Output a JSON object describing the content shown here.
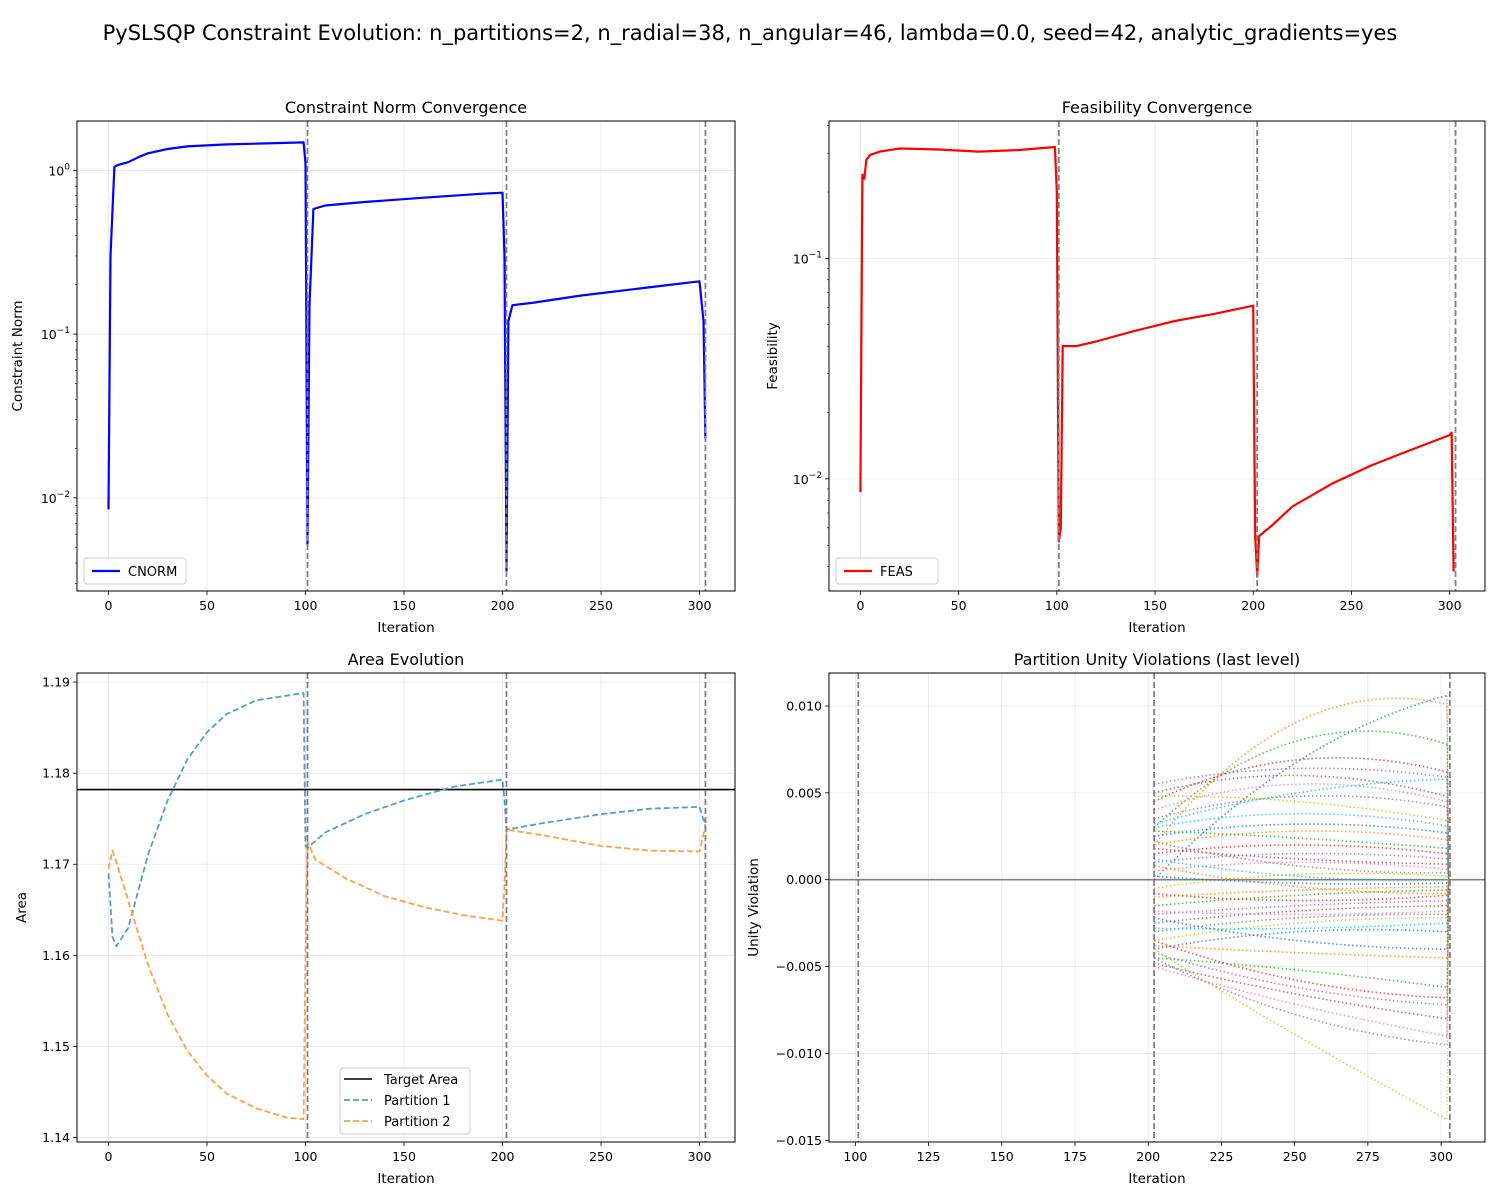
{
  "suptitle": "PySLSQP Constraint Evolution: n_partitions=2, n_radial=38, n_angular=46, lambda=0.0, seed=42, analytic_gradients=yes",
  "chart_data": [
    {
      "type": "line",
      "title": "Constraint Norm Convergence",
      "xlabel": "Iteration",
      "ylabel": "Constraint Norm",
      "yscale": "log",
      "xlim": [
        -16,
        318
      ],
      "ylim": [
        0.0027,
        2.0
      ],
      "xticks": [
        0,
        50,
        100,
        150,
        200,
        250,
        300
      ],
      "yticks": [
        {
          "value": 0.01,
          "base": "10",
          "exp": "−2"
        },
        {
          "value": 0.1,
          "base": "10",
          "exp": "−1"
        },
        {
          "value": 1,
          "base": "10",
          "exp": "0"
        }
      ],
      "grid": true,
      "legend_position": "lower left",
      "vlines": [
        101,
        202,
        303
      ],
      "vline_color": "#808080",
      "series": [
        {
          "name": "CNORM",
          "color": "#0000ff",
          "points": [
            [
              0,
              0.0085
            ],
            [
              1,
              0.3
            ],
            [
              3,
              1.05
            ],
            [
              5,
              1.08
            ],
            [
              10,
              1.12
            ],
            [
              15,
              1.2
            ],
            [
              20,
              1.27
            ],
            [
              30,
              1.35
            ],
            [
              40,
              1.4
            ],
            [
              60,
              1.44
            ],
            [
              80,
              1.46
            ],
            [
              99,
              1.48
            ],
            [
              100,
              1.1
            ],
            [
              101,
              0.0052
            ],
            [
              102,
              0.15
            ],
            [
              104,
              0.58
            ],
            [
              110,
              0.61
            ],
            [
              130,
              0.64
            ],
            [
              160,
              0.68
            ],
            [
              190,
              0.72
            ],
            [
              200,
              0.73
            ],
            [
              201,
              0.3
            ],
            [
              202,
              0.0036
            ],
            [
              203,
              0.12
            ],
            [
              205,
              0.15
            ],
            [
              215,
              0.155
            ],
            [
              240,
              0.172
            ],
            [
              270,
              0.19
            ],
            [
              300,
              0.21
            ],
            [
              302,
              0.12
            ],
            [
              303,
              0.023
            ]
          ]
        }
      ]
    },
    {
      "type": "line",
      "title": "Feasibility Convergence",
      "xlabel": "Iteration",
      "ylabel": "Feasibility",
      "yscale": "log",
      "xlim": [
        -16,
        318
      ],
      "ylim": [
        0.0031,
        0.42
      ],
      "xticks": [
        0,
        50,
        100,
        150,
        200,
        250,
        300
      ],
      "yticks": [
        {
          "value": 0.01,
          "base": "10",
          "exp": "−2"
        },
        {
          "value": 0.1,
          "base": "10",
          "exp": "−1"
        }
      ],
      "grid": true,
      "legend_position": "lower left",
      "vlines": [
        101,
        202,
        303
      ],
      "vline_color": "#808080",
      "series": [
        {
          "name": "FEAS",
          "color": "#ff0000",
          "points": [
            [
              0,
              0.0087
            ],
            [
              1,
              0.24
            ],
            [
              2,
              0.23
            ],
            [
              3,
              0.28
            ],
            [
              5,
              0.295
            ],
            [
              10,
              0.305
            ],
            [
              20,
              0.315
            ],
            [
              40,
              0.312
            ],
            [
              60,
              0.305
            ],
            [
              80,
              0.31
            ],
            [
              99,
              0.32
            ],
            [
              100,
              0.2
            ],
            [
              101,
              0.0052
            ],
            [
              102,
              0.006
            ],
            [
              103,
              0.04
            ],
            [
              110,
              0.04
            ],
            [
              120,
              0.042
            ],
            [
              140,
              0.047
            ],
            [
              160,
              0.052
            ],
            [
              180,
              0.056
            ],
            [
              200,
              0.061
            ],
            [
              201,
              0.0055
            ],
            [
              202,
              0.0036
            ],
            [
              203,
              0.0055
            ],
            [
              210,
              0.0062
            ],
            [
              220,
              0.0075
            ],
            [
              240,
              0.0095
            ],
            [
              260,
              0.0115
            ],
            [
              280,
              0.0135
            ],
            [
              300,
              0.0158
            ],
            [
              301,
              0.0162
            ],
            [
              302,
              0.0038
            ]
          ]
        }
      ]
    },
    {
      "type": "line",
      "title": "Area Evolution",
      "xlabel": "Iteration",
      "ylabel": "Area",
      "xlim": [
        -16,
        318
      ],
      "ylim": [
        1.1395,
        1.191
      ],
      "xticks": [
        0,
        50,
        100,
        150,
        200,
        250,
        300
      ],
      "yticks": [
        1.14,
        1.15,
        1.16,
        1.17,
        1.18,
        1.19
      ],
      "grid": true,
      "legend_position": "lower center",
      "vlines": [
        101,
        202,
        303
      ],
      "vline_color": "#808080",
      "hline": {
        "name": "Target Area",
        "value": 1.1782,
        "color": "#000000"
      },
      "series": [
        {
          "name": "Partition 1",
          "color": "#5a9bc8",
          "dashed": true,
          "points": [
            [
              0,
              1.169
            ],
            [
              2,
              1.162
            ],
            [
              4,
              1.161
            ],
            [
              10,
              1.163
            ],
            [
              20,
              1.171
            ],
            [
              30,
              1.177
            ],
            [
              40,
              1.1815
            ],
            [
              50,
              1.1845
            ],
            [
              60,
              1.1865
            ],
            [
              75,
              1.188
            ],
            [
              90,
              1.1885
            ],
            [
              99,
              1.1888
            ],
            [
              100,
              1.172
            ],
            [
              101,
              1.1718
            ],
            [
              110,
              1.1735
            ],
            [
              130,
              1.1755
            ],
            [
              150,
              1.177
            ],
            [
              175,
              1.1785
            ],
            [
              200,
              1.1793
            ],
            [
              201,
              1.177
            ],
            [
              202,
              1.1738
            ],
            [
              220,
              1.1745
            ],
            [
              250,
              1.1755
            ],
            [
              275,
              1.1761
            ],
            [
              300,
              1.1763
            ],
            [
              303,
              1.1742
            ]
          ]
        },
        {
          "name": "Partition 2",
          "color": "#ffa04d",
          "dashed": true,
          "points": [
            [
              0,
              1.1695
            ],
            [
              2,
              1.1715
            ],
            [
              5,
              1.1695
            ],
            [
              10,
              1.166
            ],
            [
              20,
              1.159
            ],
            [
              30,
              1.1535
            ],
            [
              40,
              1.1495
            ],
            [
              50,
              1.1468
            ],
            [
              60,
              1.1448
            ],
            [
              75,
              1.1432
            ],
            [
              90,
              1.1422
            ],
            [
              99,
              1.142
            ],
            [
              100,
              1.16
            ],
            [
              101,
              1.1725
            ],
            [
              105,
              1.1705
            ],
            [
              120,
              1.1685
            ],
            [
              140,
              1.1665
            ],
            [
              160,
              1.1653
            ],
            [
              180,
              1.1644
            ],
            [
              200,
              1.1638
            ],
            [
              201,
              1.1675
            ],
            [
              202,
              1.1738
            ],
            [
              220,
              1.1732
            ],
            [
              250,
              1.172
            ],
            [
              275,
              1.1715
            ],
            [
              300,
              1.1714
            ],
            [
              303,
              1.1742
            ]
          ]
        }
      ]
    },
    {
      "type": "line",
      "title": "Partition Unity Violations (last level)",
      "xlabel": "Iteration",
      "ylabel": "Unity Violation",
      "xlim": [
        91,
        315
      ],
      "ylim": [
        -0.0151,
        0.0119
      ],
      "xticks": [
        100,
        125,
        150,
        175,
        200,
        225,
        250,
        275,
        300
      ],
      "yticks": [
        {
          "value": -0.015,
          "label": "−0.015"
        },
        {
          "value": -0.01,
          "label": "−0.010"
        },
        {
          "value": -0.005,
          "label": "−0.005"
        },
        {
          "value": 0,
          "label": "0.000"
        },
        {
          "value": 0.005,
          "label": "0.005"
        },
        {
          "value": 0.01,
          "label": "0.010"
        }
      ],
      "grid": true,
      "vlines": [
        101,
        202,
        303
      ],
      "vline_color": "#808080",
      "hline": {
        "value": 0,
        "color": "#808080"
      },
      "x_start": 202,
      "x_mid": 250,
      "x_end": 302,
      "colors": [
        "#1f77b4",
        "#ff7f0e",
        "#2ca02c",
        "#d62728",
        "#9467bd",
        "#8c564b",
        "#e377c2",
        "#7f7f7f",
        "#bcbd22",
        "#17becf"
      ],
      "traces": [
        [
          0.0,
          0.0068,
          0.0106
        ],
        [
          0.002,
          0.0091,
          0.0101
        ],
        [
          0.003,
          0.008,
          0.0078
        ],
        [
          0.0045,
          0.0069,
          0.0062
        ],
        [
          0.0055,
          0.0064,
          0.0059
        ],
        [
          0.005,
          0.006,
          0.0048
        ],
        [
          0.004,
          0.0055,
          0.0045
        ],
        [
          0.0035,
          0.0048,
          0.0042
        ],
        [
          0.0048,
          0.0045,
          0.0034
        ],
        [
          0.003,
          0.0038,
          0.0031
        ],
        [
          0.0025,
          0.0032,
          0.0027
        ],
        [
          0.002,
          0.0028,
          0.0023
        ],
        [
          0.0028,
          0.0024,
          0.0018
        ],
        [
          0.0015,
          0.002,
          0.0015
        ],
        [
          0.001,
          0.0015,
          0.0012
        ],
        [
          0.0018,
          0.0012,
          0.0009
        ],
        [
          0.0005,
          0.001,
          0.0006
        ],
        [
          0.0022,
          0.0008,
          0.0004
        ],
        [
          -0.0005,
          0.0003,
          0.0002
        ],
        [
          0.0012,
          0.0002,
          0.0
        ],
        [
          0.0002,
          -0.0002,
          -0.0002
        ],
        [
          -0.001,
          -0.0006,
          -0.0004
        ],
        [
          -0.0015,
          -0.0009,
          -0.0006
        ],
        [
          -0.0008,
          -0.0012,
          -0.0009
        ],
        [
          -0.002,
          -0.0015,
          -0.0012
        ],
        [
          -0.0025,
          -0.0018,
          -0.0015
        ],
        [
          -0.0018,
          -0.002,
          -0.0018
        ],
        [
          -0.003,
          -0.0022,
          -0.002
        ],
        [
          -0.0035,
          -0.0025,
          -0.0022
        ],
        [
          -0.0028,
          -0.0028,
          -0.0025
        ],
        [
          -0.004,
          -0.003,
          -0.003
        ],
        [
          -0.0038,
          -0.0042,
          -0.0045
        ],
        [
          -0.0045,
          -0.0052,
          -0.0062
        ],
        [
          -0.0035,
          -0.0058,
          -0.0068
        ],
        [
          -0.0042,
          -0.0062,
          -0.0072
        ],
        [
          -0.0048,
          -0.0066,
          -0.008
        ],
        [
          -0.005,
          -0.0072,
          -0.009
        ],
        [
          -0.0045,
          -0.0078,
          -0.0095
        ],
        [
          -0.004,
          -0.009,
          -0.0138
        ],
        [
          0.0032,
          0.005,
          0.0058
        ],
        [
          -0.0022,
          -0.0035,
          -0.004
        ],
        [
          0.0008,
          -0.0004,
          -0.0008
        ]
      ]
    }
  ]
}
